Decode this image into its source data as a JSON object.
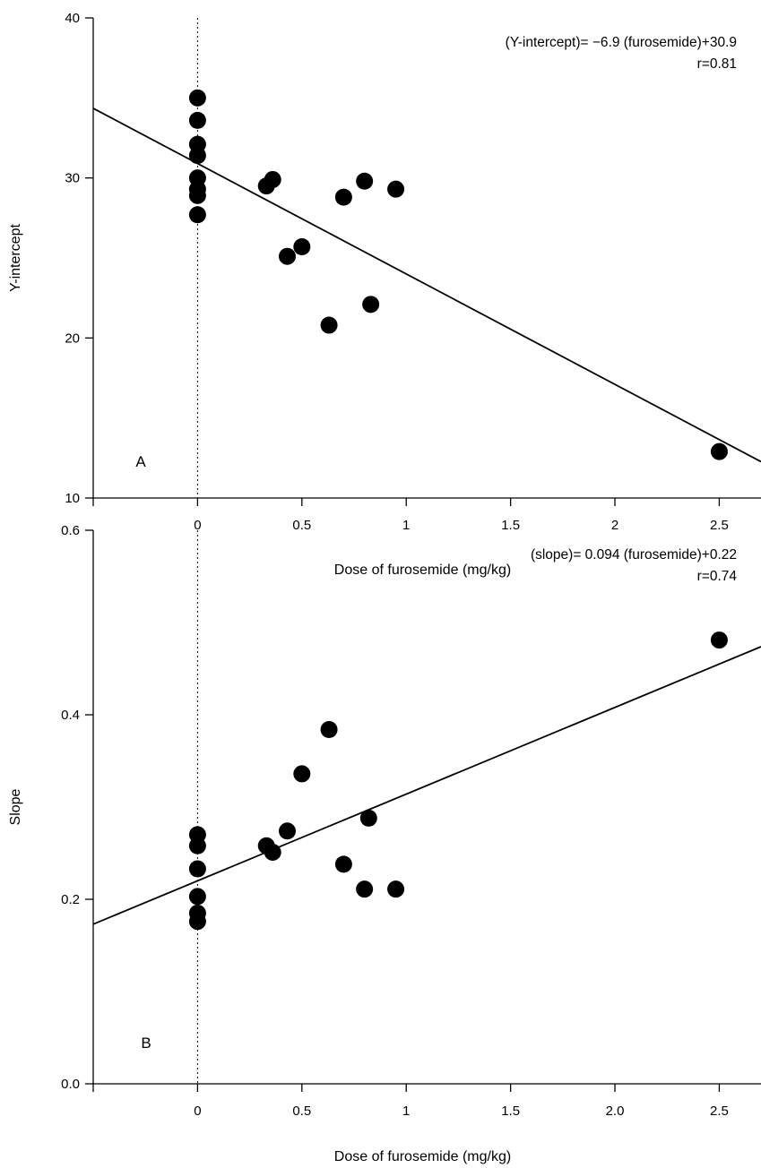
{
  "chart_data": [
    {
      "type": "scatter",
      "panel_label": "A",
      "xlabel": "Dose of furosemide (mg/kg)",
      "ylabel": "Y-intercept",
      "xlim": [
        -0.5,
        2.7
      ],
      "ylim": [
        10,
        40
      ],
      "x_ticks": [
        0,
        0.5,
        1,
        1.5,
        2,
        2.5
      ],
      "x_tick_labels": [
        "0",
        "0.5",
        "1",
        "1.5",
        "2",
        "2.5"
      ],
      "y_ticks": [
        10,
        20,
        30,
        40
      ],
      "y_tick_labels": [
        "10",
        "20",
        "30",
        "40"
      ],
      "annotation_lines": [
        "(Y-intercept)= −6.9 (furosemide)+30.9",
        "r=0.81"
      ],
      "reference_line_x": 0,
      "fit": {
        "slope": -6.9,
        "intercept": 30.9
      },
      "points": [
        {
          "x": 0,
          "y": 35.0
        },
        {
          "x": 0,
          "y": 33.6
        },
        {
          "x": 0,
          "y": 32.1
        },
        {
          "x": 0,
          "y": 31.4
        },
        {
          "x": 0,
          "y": 30.0
        },
        {
          "x": 0,
          "y": 29.3
        },
        {
          "x": 0,
          "y": 28.9
        },
        {
          "x": 0,
          "y": 27.7
        },
        {
          "x": 0.33,
          "y": 29.5
        },
        {
          "x": 0.36,
          "y": 29.9
        },
        {
          "x": 0.43,
          "y": 25.1
        },
        {
          "x": 0.5,
          "y": 25.7
        },
        {
          "x": 0.63,
          "y": 20.8
        },
        {
          "x": 0.7,
          "y": 28.8
        },
        {
          "x": 0.8,
          "y": 29.8
        },
        {
          "x": 0.83,
          "y": 22.1
        },
        {
          "x": 0.95,
          "y": 29.3
        },
        {
          "x": 2.5,
          "y": 12.9
        }
      ]
    },
    {
      "type": "scatter",
      "panel_label": "B",
      "xlabel": "Dose of furosemide (mg/kg)",
      "ylabel": "Slope",
      "xlim": [
        -0.5,
        2.7
      ],
      "ylim": [
        0.0,
        0.6
      ],
      "x_ticks": [
        0,
        0.5,
        1,
        1.5,
        2,
        2.5
      ],
      "x_tick_labels": [
        "0",
        "0.5",
        "1",
        "1.5",
        "2.0",
        "2.5"
      ],
      "y_ticks": [
        0,
        0.2,
        0.4,
        0.6
      ],
      "y_tick_labels": [
        "0.0",
        "0.2",
        "0.4",
        "0.6"
      ],
      "annotation_lines": [
        "(slope)= 0.094 (furosemide)+0.22",
        "r=0.74"
      ],
      "reference_line_x": 0,
      "fit": {
        "slope": 0.094,
        "intercept": 0.22
      },
      "points": [
        {
          "x": 0,
          "y": 0.27
        },
        {
          "x": 0,
          "y": 0.258
        },
        {
          "x": 0,
          "y": 0.233
        },
        {
          "x": 0,
          "y": 0.203
        },
        {
          "x": 0,
          "y": 0.185
        },
        {
          "x": 0,
          "y": 0.176
        },
        {
          "x": 0.33,
          "y": 0.258
        },
        {
          "x": 0.36,
          "y": 0.251
        },
        {
          "x": 0.43,
          "y": 0.274
        },
        {
          "x": 0.5,
          "y": 0.336
        },
        {
          "x": 0.63,
          "y": 0.384
        },
        {
          "x": 0.7,
          "y": 0.238
        },
        {
          "x": 0.8,
          "y": 0.211
        },
        {
          "x": 0.82,
          "y": 0.288
        },
        {
          "x": 0.95,
          "y": 0.211
        },
        {
          "x": 2.5,
          "y": 0.481
        }
      ]
    }
  ]
}
